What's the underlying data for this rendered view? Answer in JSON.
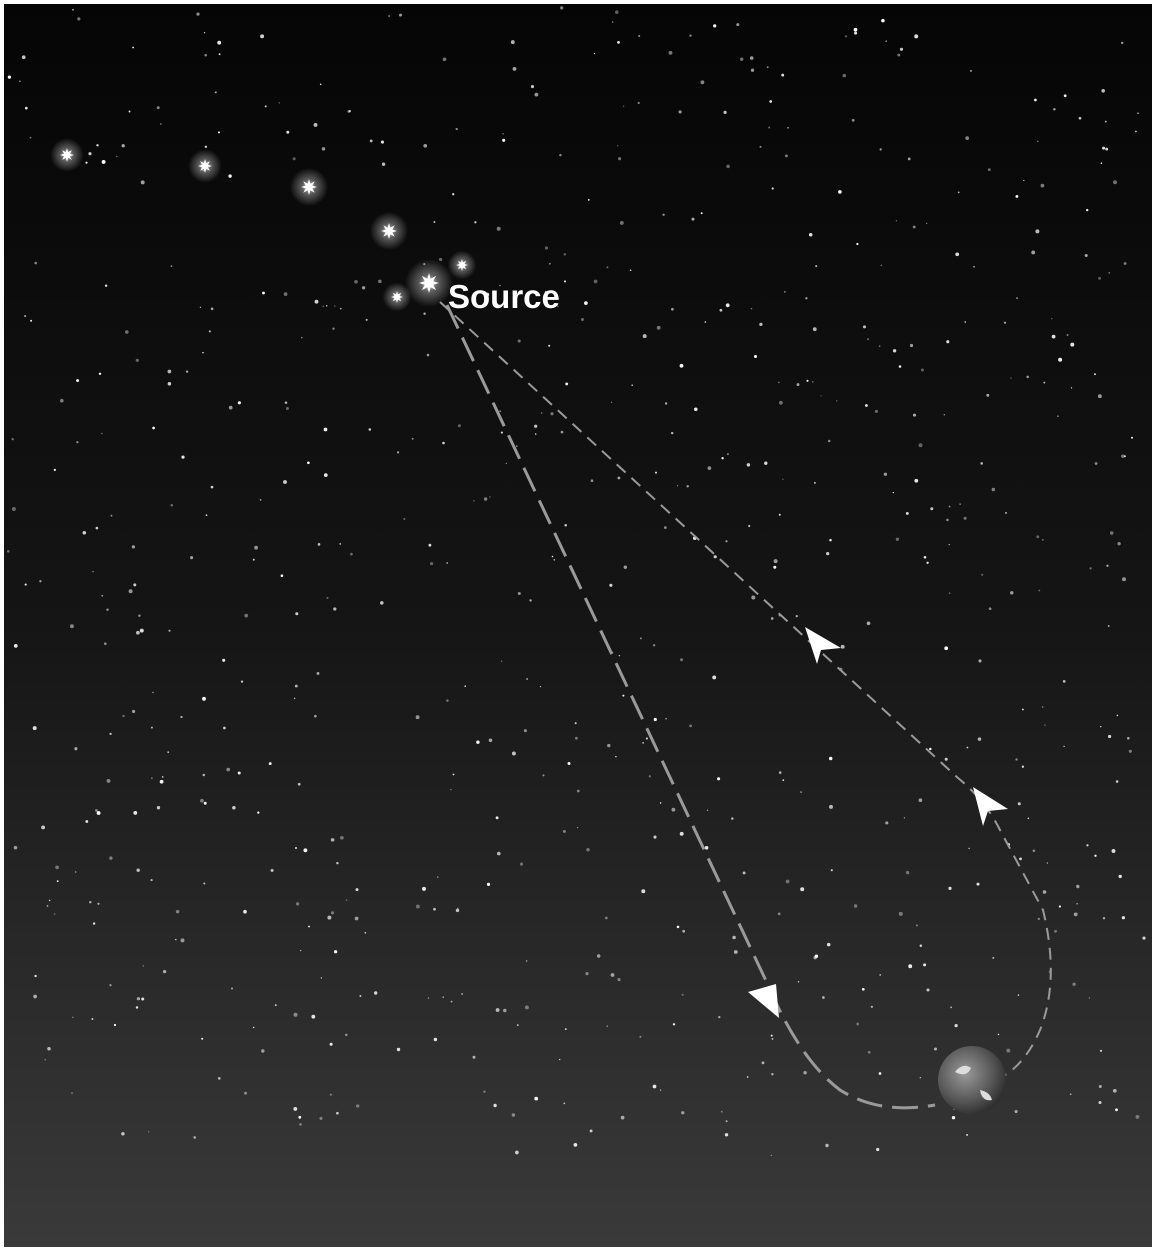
{
  "labels": {
    "source": "Source"
  }
}
